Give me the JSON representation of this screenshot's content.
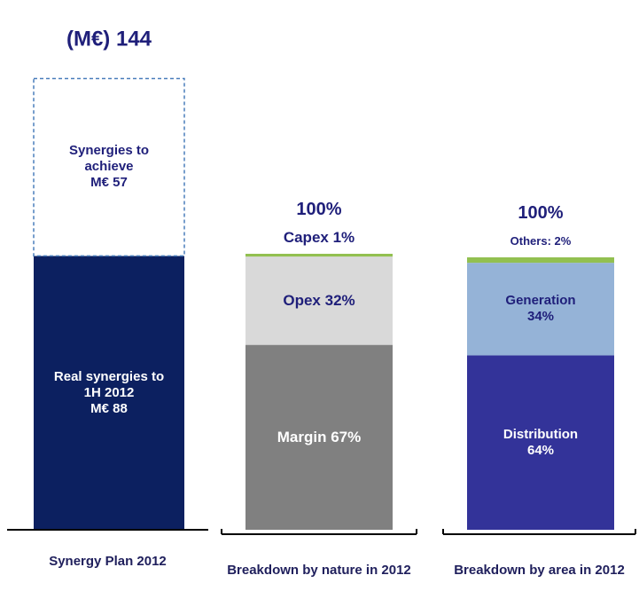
{
  "chart_data": [
    {
      "type": "stacked_bar",
      "categories": [
        "Synergy Plan 2012"
      ],
      "total": 144,
      "total_label": "(M€) 144",
      "series": [
        {
          "name": "Real synergies to 1H 2012",
          "color": "#0c2060",
          "values": [
            88
          ],
          "value_labels": [
            "M€ 88"
          ]
        },
        {
          "name": "Synergies to achieve",
          "color": "#ffffff",
          "values": [
            57
          ],
          "value_labels": [
            "M€ 57"
          ]
        }
      ]
    },
    {
      "type": "stacked_bar",
      "categories": [
        "Breakdown  by nature in 2012"
      ],
      "total": 100,
      "total_label": "100%",
      "series": [
        {
          "name": "Margin",
          "color": "#808080",
          "values": [
            67
          ],
          "value_labels": [
            "67%"
          ]
        },
        {
          "name": "Opex",
          "color": "#d9d9d9",
          "values": [
            32
          ],
          "value_labels": [
            "32%"
          ]
        },
        {
          "name": "Capex",
          "color": "#92c050",
          "values": [
            1
          ],
          "value_labels": [
            "1%"
          ]
        }
      ]
    },
    {
      "type": "stacked_bar",
      "categories": [
        "Breakdown  by area in 2012"
      ],
      "total": 100,
      "total_label": "100%",
      "series": [
        {
          "name": "Distribution",
          "color": "#333399",
          "values": [
            64
          ],
          "value_labels": [
            "64%"
          ]
        },
        {
          "name": "Generation",
          "color": "#95b3d7",
          "values": [
            34
          ],
          "value_labels": [
            "34%"
          ]
        },
        {
          "name": "Others:",
          "color": "#92c050",
          "values": [
            2
          ],
          "value_labels": [
            "2%"
          ]
        }
      ]
    }
  ]
}
